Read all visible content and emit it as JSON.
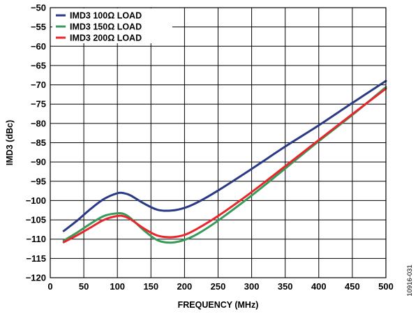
{
  "chart_data": {
    "type": "line",
    "xlabel": "FREQUENCY (MHz)",
    "ylabel": "IMD3 (dBc)",
    "xlim": [
      0,
      500
    ],
    "ylim": [
      -120,
      -50
    ],
    "x_ticks": [
      0,
      50,
      100,
      150,
      200,
      250,
      300,
      350,
      400,
      450,
      500
    ],
    "y_ticks": [
      -50,
      -55,
      -60,
      -65,
      -70,
      -75,
      -80,
      -85,
      -90,
      -95,
      -100,
      -105,
      -110,
      -115,
      -120
    ],
    "x_tick_labels": [
      "0",
      "50",
      "100",
      "150",
      "200",
      "250",
      "300",
      "350",
      "400",
      "450",
      "500"
    ],
    "y_tick_labels": [
      "−50",
      "−55",
      "−60",
      "−65",
      "−70",
      "−75",
      "−80",
      "−85",
      "−90",
      "−95",
      "−100",
      "−105",
      "−110",
      "−115",
      "−120"
    ],
    "grid": true,
    "legend_position": "top-left",
    "series": [
      {
        "name": "IMD3 100Ω LOAD",
        "color": "#2b3a86",
        "x": [
          20,
          40,
          60,
          80,
          100,
          110,
          120,
          140,
          160,
          180,
          200,
          220,
          250,
          300,
          350,
          400,
          450,
          500
        ],
        "y": [
          -107.9,
          -105.2,
          -102.2,
          -99.6,
          -98.1,
          -98.1,
          -98.7,
          -100.8,
          -102.4,
          -102.6,
          -101.9,
          -100.4,
          -97.4,
          -91.8,
          -86.0,
          -80.5,
          -74.7,
          -69.0
        ]
      },
      {
        "name": "IMD3 150Ω LOAD",
        "color": "#3a9a5b",
        "x": [
          20,
          40,
          60,
          80,
          100,
          110,
          120,
          140,
          160,
          180,
          200,
          220,
          250,
          300,
          350,
          400,
          450,
          500
        ],
        "y": [
          -110.4,
          -108.3,
          -106.0,
          -104.0,
          -103.3,
          -103.5,
          -104.6,
          -107.8,
          -110.3,
          -110.9,
          -110.2,
          -108.6,
          -105.2,
          -98.7,
          -91.7,
          -84.6,
          -77.8,
          -70.6
        ]
      },
      {
        "name": "IMD3 200Ω LOAD",
        "color": "#e8262b",
        "x": [
          20,
          40,
          60,
          80,
          100,
          110,
          120,
          140,
          160,
          180,
          200,
          220,
          250,
          300,
          350,
          400,
          450,
          500
        ],
        "y": [
          -110.8,
          -109.0,
          -107.0,
          -105.0,
          -104.0,
          -104.1,
          -104.9,
          -107.3,
          -109.1,
          -109.5,
          -108.9,
          -107.2,
          -104.0,
          -97.8,
          -91.1,
          -84.3,
          -77.6,
          -71.0
        ]
      }
    ]
  },
  "figure_id": "10916-031"
}
